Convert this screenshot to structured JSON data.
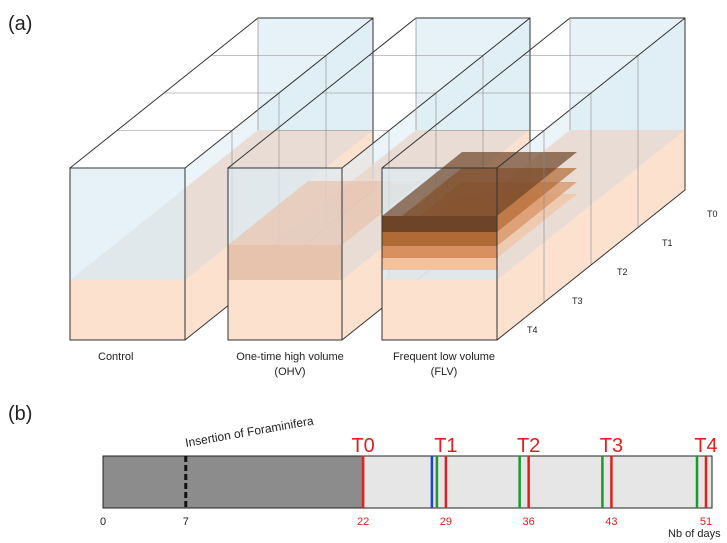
{
  "panel_a": {
    "label": "(a)",
    "treatments": [
      {
        "name": "Control"
      },
      {
        "name": "One-time high volume",
        "abbr": "(OHV)"
      },
      {
        "name": "Frequent low volume",
        "abbr": "(FLV)"
      }
    ],
    "time_points": [
      "T0",
      "T1",
      "T2",
      "T3",
      "T4"
    ]
  },
  "panel_b": {
    "label": "(b)",
    "annotation": "Insertion of Foraminifera",
    "axis_label": "Nb of days",
    "ticks": [
      0,
      7,
      22,
      29,
      36,
      43,
      51
    ],
    "sampling_labels": [
      "T0",
      "T1",
      "T2",
      "T3",
      "T4"
    ]
  }
}
